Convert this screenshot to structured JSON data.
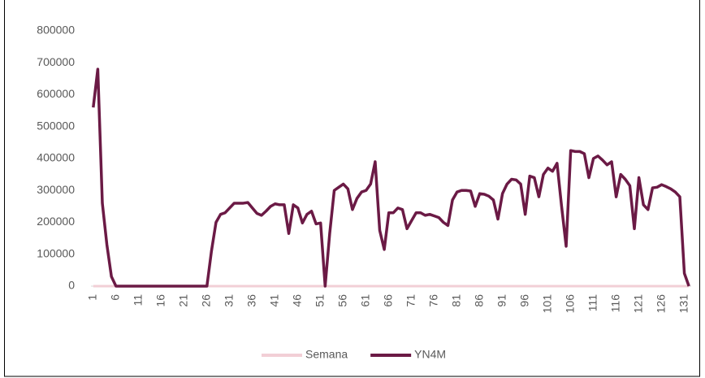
{
  "chart_data": {
    "type": "line",
    "categories": [
      1,
      null,
      null,
      null,
      null,
      6,
      null,
      null,
      null,
      null,
      11,
      null,
      null,
      null,
      null,
      16,
      null,
      null,
      null,
      null,
      21,
      null,
      null,
      null,
      null,
      26,
      null,
      null,
      null,
      null,
      31,
      null,
      null,
      null,
      null,
      36,
      null,
      null,
      null,
      null,
      41,
      null,
      null,
      null,
      null,
      46,
      null,
      null,
      null,
      null,
      51,
      null,
      null,
      null,
      null,
      56,
      null,
      null,
      null,
      null,
      61,
      null,
      null,
      null,
      null,
      66,
      null,
      null,
      null,
      null,
      71,
      null,
      null,
      null,
      null,
      76,
      null,
      null,
      null,
      null,
      81,
      null,
      null,
      null,
      null,
      86,
      null,
      null,
      null,
      null,
      91,
      null,
      null,
      null,
      null,
      96,
      null,
      null,
      null,
      null,
      101,
      null,
      null,
      null,
      null,
      106,
      null,
      null,
      null,
      null,
      111,
      null,
      null,
      null,
      null,
      116,
      null,
      null,
      null,
      null,
      121,
      null,
      null,
      null,
      null,
      126,
      null,
      null,
      null,
      null,
      131,
      null
    ],
    "series": [
      {
        "name": "Semana",
        "color": "#f2cfd6",
        "values": [
          1,
          2,
          3,
          4,
          5,
          6,
          7,
          8,
          9,
          10,
          11,
          12,
          13,
          14,
          15,
          16,
          17,
          18,
          19,
          20,
          21,
          22,
          23,
          24,
          25,
          26,
          27,
          28,
          29,
          30,
          31,
          32,
          33,
          34,
          35,
          36,
          37,
          38,
          39,
          40,
          41,
          42,
          43,
          44,
          45,
          46,
          47,
          48,
          49,
          50,
          51,
          52,
          53,
          54,
          55,
          56,
          57,
          58,
          59,
          60,
          61,
          62,
          63,
          64,
          65,
          66,
          67,
          68,
          69,
          70,
          71,
          72,
          73,
          74,
          75,
          76,
          77,
          78,
          79,
          80,
          81,
          82,
          83,
          84,
          85,
          86,
          87,
          88,
          89,
          90,
          91,
          92,
          93,
          94,
          95,
          96,
          97,
          98,
          99,
          100,
          101,
          102,
          103,
          104,
          105,
          106,
          107,
          108,
          109,
          110,
          111,
          112,
          113,
          114,
          115,
          116,
          117,
          118,
          119,
          120,
          121,
          122,
          123,
          124,
          125,
          126,
          127,
          128,
          129,
          130,
          131,
          132
        ]
      },
      {
        "name": "YN4M",
        "color": "#6b1a45",
        "values": [
          560000,
          680000,
          260000,
          130000,
          30000,
          0,
          0,
          0,
          0,
          0,
          0,
          0,
          0,
          0,
          0,
          0,
          0,
          0,
          0,
          0,
          0,
          0,
          0,
          0,
          0,
          0,
          110000,
          200000,
          225000,
          230000,
          245000,
          260000,
          260000,
          260000,
          262000,
          245000,
          228000,
          222000,
          235000,
          250000,
          258000,
          255000,
          255000,
          165000,
          255000,
          245000,
          198000,
          225000,
          235000,
          195000,
          198000,
          0,
          165000,
          300000,
          310000,
          320000,
          305000,
          240000,
          275000,
          295000,
          300000,
          320000,
          390000,
          175000,
          115000,
          230000,
          230000,
          245000,
          240000,
          180000,
          205000,
          230000,
          230000,
          222000,
          225000,
          220000,
          215000,
          200000,
          190000,
          270000,
          295000,
          300000,
          300000,
          298000,
          250000,
          290000,
          288000,
          282000,
          270000,
          210000,
          290000,
          320000,
          335000,
          333000,
          320000,
          225000,
          345000,
          340000,
          280000,
          350000,
          370000,
          360000,
          385000,
          250000,
          125000,
          425000,
          422000,
          422000,
          415000,
          340000,
          400000,
          408000,
          395000,
          380000,
          390000,
          280000,
          350000,
          335000,
          315000,
          180000,
          340000,
          255000,
          240000,
          308000,
          310000,
          318000,
          312000,
          305000,
          295000,
          280000,
          40000,
          0
        ]
      }
    ],
    "ylim": [
      0,
      800000
    ],
    "yticks": [
      0,
      100000,
      200000,
      300000,
      400000,
      500000,
      600000,
      700000,
      800000
    ],
    "grid": false
  }
}
